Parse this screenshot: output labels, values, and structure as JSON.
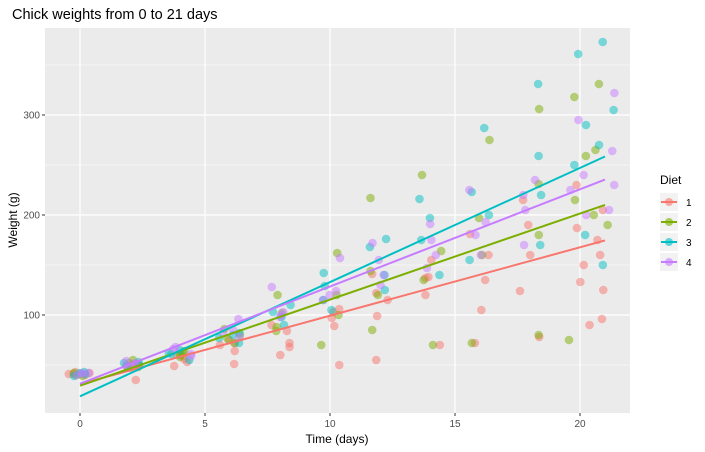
{
  "chart_data": {
    "type": "scatter",
    "title": "Chick weights from 0 to 21 days",
    "xlabel": "Time (days)",
    "ylabel": "Weight (g)",
    "xlim": [
      -1.4,
      22
    ],
    "ylim": [
      2,
      387
    ],
    "xticks": [
      0,
      5,
      10,
      15,
      20
    ],
    "yticks": [
      100,
      200,
      300
    ],
    "grid": true,
    "legend": {
      "title": "Diet",
      "placement": "right"
    },
    "times": [
      0,
      2,
      4,
      6,
      8,
      10,
      12,
      14,
      16,
      18,
      20,
      21
    ],
    "series": [
      {
        "name": "1",
        "color": "#F8766D",
        "fit": {
          "intercept": 30.9,
          "slope": 6.84
        },
        "weights": [
          [
            41,
            42,
            43,
            41,
            40
          ],
          [
            47,
            49,
            51,
            35,
            50
          ],
          [
            56,
            59,
            53,
            49,
            60
          ],
          [
            64,
            72,
            70,
            51,
            75
          ],
          [
            72,
            84,
            90,
            60,
            68
          ],
          [
            89,
            103,
            97,
            50,
            106
          ],
          [
            99,
            122,
            115,
            55,
            141
          ],
          [
            120,
            138,
            137,
            70,
            155
          ],
          [
            135,
            160,
            181,
            72,
            105
          ],
          [
            160,
            190,
            215,
            78,
            124
          ],
          [
            187,
            230,
            150,
            90,
            133
          ],
          [
            175,
            205,
            160,
            96,
            125
          ]
        ]
      },
      {
        "name": "2",
        "color": "#7CAE00",
        "fit": {
          "intercept": 29.3,
          "slope": 8.61
        },
        "weights": [
          [
            40,
            41,
            39,
            42
          ],
          [
            50,
            52,
            48,
            55
          ],
          [
            62,
            60,
            58,
            64
          ],
          [
            80,
            76,
            72,
            86
          ],
          [
            102,
            88,
            84,
            120
          ],
          [
            120,
            100,
            70,
            162
          ],
          [
            144,
            120,
            85,
            217
          ],
          [
            164,
            135,
            70,
            240
          ],
          [
            197,
            160,
            72,
            275
          ],
          [
            231,
            180,
            80,
            306
          ],
          [
            259,
            215,
            75,
            318
          ],
          [
            265,
            200,
            190,
            331
          ]
        ]
      },
      {
        "name": "3",
        "color": "#00BFC4",
        "fit": {
          "intercept": 18.7,
          "slope": 11.42
        },
        "weights": [
          [
            41,
            42,
            43,
            39
          ],
          [
            53,
            52,
            49,
            50
          ],
          [
            61,
            65,
            62,
            55
          ],
          [
            80,
            82,
            77,
            72
          ],
          [
            103,
            110,
            98,
            90
          ],
          [
            129,
            142,
            115,
            105
          ],
          [
            168,
            176,
            140,
            125
          ],
          [
            197,
            216,
            175,
            140
          ],
          [
            223,
            287,
            200,
            155
          ],
          [
            259,
            331,
            220,
            170
          ],
          [
            290,
            361,
            250,
            180
          ],
          [
            305,
            373,
            270,
            150
          ]
        ]
      },
      {
        "name": "4",
        "color": "#C77CFF",
        "fit": {
          "intercept": 31.3,
          "slope": 9.72
        },
        "weights": [
          [
            42,
            41,
            40,
            42
          ],
          [
            51,
            54,
            52,
            49
          ],
          [
            66,
            68,
            61,
            59
          ],
          [
            85,
            96,
            78,
            82
          ],
          [
            103,
            128,
            98,
            100
          ],
          [
            124,
            157,
            120,
            115
          ],
          [
            155,
            172,
            140,
            130
          ],
          [
            175,
            191,
            160,
            147
          ],
          [
            193,
            225,
            180,
            160
          ],
          [
            220,
            235,
            205,
            170
          ],
          [
            240,
            295,
            225,
            200
          ],
          [
            264,
            322,
            230,
            205
          ]
        ]
      }
    ]
  }
}
